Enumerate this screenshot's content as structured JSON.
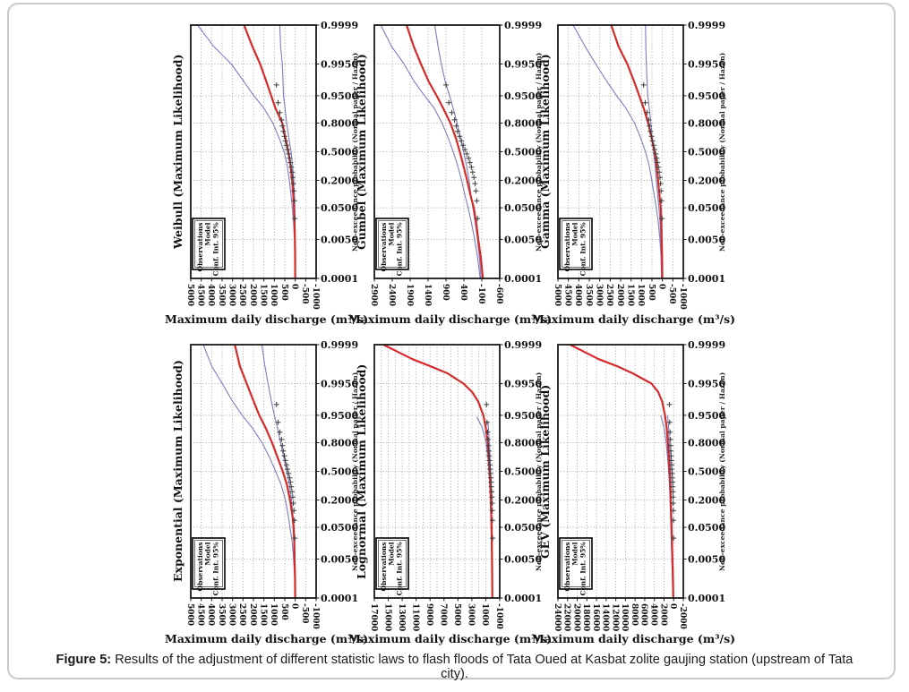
{
  "figure": {
    "caption_label": "Figure 5:",
    "caption_text": " Results of the adjustment of different statistic laws to flash floods of Tata Oued at Kasbat zolite gaujing station (upstream of Tata city)."
  },
  "axes": {
    "x_label": "Maximum daily discharge (m³/s)",
    "y_right_label": "Non-exceedance probability (Normal paper / Hazen)",
    "probability_ticks": [
      "0.9999",
      "0.9950",
      "0.9500",
      "0.8000",
      "0.5000",
      "0.2000",
      "0.0500",
      "0.0050",
      "0.0001"
    ],
    "probability_values": [
      0.9999,
      0.995,
      0.95,
      0.8,
      0.5,
      0.2,
      0.05,
      0.005,
      0.0001
    ]
  },
  "legend": {
    "items": [
      "Observations",
      "Model",
      "Conf. Int. 95%"
    ]
  },
  "colors": {
    "model": "#d42b2b",
    "confidence": "#7d7dc0",
    "observations": "#3c3c3c",
    "grid": "#8f8f8f",
    "frame": "#1a1a1a"
  },
  "observations": {
    "p": [
      0.975,
      0.925,
      0.875,
      0.825,
      0.775,
      0.725,
      0.675,
      0.625,
      0.575,
      0.525,
      0.475,
      0.425,
      0.375,
      0.325,
      0.275,
      0.225,
      0.175,
      0.125,
      0.075,
      0.025
    ],
    "q": [
      900,
      820,
      740,
      660,
      615,
      575,
      520,
      470,
      420,
      370,
      320,
      270,
      230,
      190,
      155,
      120,
      90,
      65,
      40,
      20
    ]
  },
  "chart_data": [
    {
      "type": "line",
      "title": "Weibull (Maximum Likelihood)",
      "x_ticks": [
        5000,
        4500,
        4000,
        3500,
        3000,
        2500,
        2000,
        1500,
        1000,
        500,
        0,
        -500,
        -1000
      ],
      "x_range": [
        5000,
        -1000
      ],
      "grid_step": 500,
      "model": [
        [
          0.9999,
          2450
        ],
        [
          0.999,
          2050
        ],
        [
          0.995,
          1680
        ],
        [
          0.98,
          1380
        ],
        [
          0.95,
          1150
        ],
        [
          0.9,
          950
        ],
        [
          0.8,
          620
        ],
        [
          0.65,
          460
        ],
        [
          0.5,
          330
        ],
        [
          0.35,
          230
        ],
        [
          0.2,
          150
        ],
        [
          0.1,
          95
        ],
        [
          0.05,
          60
        ],
        [
          0.02,
          35
        ],
        [
          0.005,
          15
        ],
        [
          0.001,
          6
        ],
        [
          0.0001,
          2
        ]
      ],
      "conf_upper": [
        [
          0.9999,
          4670
        ],
        [
          0.999,
          3900
        ],
        [
          0.995,
          3060
        ],
        [
          0.98,
          2450
        ],
        [
          0.95,
          1980
        ],
        [
          0.9,
          1500
        ],
        [
          0.8,
          1070
        ],
        [
          0.65,
          760
        ],
        [
          0.5,
          530
        ],
        [
          0.35,
          390
        ],
        [
          0.2,
          283
        ],
        [
          0.1,
          200
        ],
        [
          0.05,
          138
        ],
        [
          0.02,
          85
        ],
        [
          0.005,
          36
        ],
        [
          0.001,
          15
        ],
        [
          0.0001,
          5
        ]
      ],
      "conf_lower": [
        [
          0.9999,
          740
        ],
        [
          0.999,
          700
        ],
        [
          0.995,
          620
        ],
        [
          0.98,
          585
        ],
        [
          0.95,
          560
        ],
        [
          0.9,
          490
        ],
        [
          0.8,
          410
        ],
        [
          0.65,
          300
        ],
        [
          0.5,
          200
        ],
        [
          0.35,
          130
        ],
        [
          0.2,
          77
        ],
        [
          0.1,
          42
        ],
        [
          0.05,
          20
        ],
        [
          0.02,
          10
        ],
        [
          0.005,
          5
        ],
        [
          0.001,
          2
        ],
        [
          0.0001,
          0
        ]
      ]
    },
    {
      "type": "line",
      "title": "Gumbel (Maximum Likelihood)",
      "x_ticks": [
        2900,
        2400,
        1900,
        1400,
        900,
        400,
        -100,
        -600
      ],
      "x_range": [
        2900,
        -600
      ],
      "grid_step": 500,
      "model": [
        [
          0.9999,
          2000
        ],
        [
          0.999,
          1800
        ],
        [
          0.995,
          1600
        ],
        [
          0.98,
          1380
        ],
        [
          0.95,
          1160
        ],
        [
          0.9,
          980
        ],
        [
          0.8,
          775
        ],
        [
          0.65,
          620
        ],
        [
          0.5,
          515
        ],
        [
          0.35,
          420
        ],
        [
          0.2,
          310
        ],
        [
          0.1,
          215
        ],
        [
          0.05,
          125
        ],
        [
          0.02,
          60
        ],
        [
          0.005,
          0
        ],
        [
          0.001,
          -70
        ],
        [
          0.0001,
          -130
        ]
      ],
      "conf_upper": [
        [
          0.9999,
          2720
        ],
        [
          0.999,
          2420
        ],
        [
          0.995,
          2070
        ],
        [
          0.98,
          1780
        ],
        [
          0.95,
          1500
        ],
        [
          0.9,
          1230
        ],
        [
          0.8,
          1010
        ],
        [
          0.65,
          830
        ],
        [
          0.5,
          700
        ],
        [
          0.35,
          580
        ],
        [
          0.2,
          463
        ],
        [
          0.1,
          370
        ],
        [
          0.05,
          280
        ],
        [
          0.02,
          195
        ],
        [
          0.005,
          100
        ],
        [
          0.001,
          20
        ],
        [
          0.0001,
          -55
        ]
      ],
      "conf_lower": [
        [
          0.9999,
          1215
        ],
        [
          0.999,
          1120
        ],
        [
          0.995,
          1030
        ],
        [
          0.98,
          920
        ],
        [
          0.95,
          800
        ],
        [
          0.9,
          700
        ],
        [
          0.8,
          590
        ],
        [
          0.65,
          490
        ],
        [
          0.5,
          410
        ],
        [
          0.35,
          330
        ],
        [
          0.2,
          255
        ],
        [
          0.1,
          200
        ],
        [
          0.05,
          150
        ],
        [
          0.02,
          90
        ],
        [
          0.005,
          20
        ],
        [
          0.001,
          -30
        ],
        [
          0.0001,
          -80
        ]
      ]
    },
    {
      "type": "line",
      "title": "Gamma (Maximum Likelihood)",
      "x_ticks": [
        5000,
        4500,
        4000,
        3500,
        3000,
        2500,
        2000,
        1500,
        1000,
        500,
        0,
        -500,
        -1000
      ],
      "x_range": [
        5000,
        -1000
      ],
      "grid_step": 500,
      "model": [
        [
          0.9999,
          2450
        ],
        [
          0.999,
          2100
        ],
        [
          0.995,
          1680
        ],
        [
          0.98,
          1350
        ],
        [
          0.95,
          1110
        ],
        [
          0.9,
          900
        ],
        [
          0.8,
          680
        ],
        [
          0.65,
          510
        ],
        [
          0.5,
          380
        ],
        [
          0.35,
          285
        ],
        [
          0.2,
          207
        ],
        [
          0.1,
          140
        ],
        [
          0.05,
          80
        ],
        [
          0.02,
          55
        ],
        [
          0.005,
          35
        ],
        [
          0.001,
          15
        ],
        [
          0.0001,
          5
        ]
      ],
      "conf_upper": [
        [
          0.9999,
          4270
        ],
        [
          0.999,
          3700
        ],
        [
          0.995,
          3190
        ],
        [
          0.98,
          2650
        ],
        [
          0.95,
          2190
        ],
        [
          0.9,
          1750
        ],
        [
          0.8,
          1330
        ],
        [
          0.65,
          1030
        ],
        [
          0.5,
          810
        ],
        [
          0.35,
          640
        ],
        [
          0.2,
          510
        ],
        [
          0.1,
          390
        ],
        [
          0.05,
          295
        ],
        [
          0.02,
          200
        ],
        [
          0.005,
          120
        ],
        [
          0.001,
          70
        ],
        [
          0.0001,
          45
        ]
      ],
      "conf_lower": [
        [
          0.9999,
          810
        ],
        [
          0.999,
          795
        ],
        [
          0.995,
          770
        ],
        [
          0.98,
          735
        ],
        [
          0.95,
          700
        ],
        [
          0.9,
          630
        ],
        [
          0.8,
          550
        ],
        [
          0.65,
          480
        ],
        [
          0.5,
          420
        ],
        [
          0.35,
          355
        ],
        [
          0.2,
          295
        ],
        [
          0.1,
          225
        ],
        [
          0.05,
          165
        ],
        [
          0.02,
          115
        ],
        [
          0.005,
          80
        ],
        [
          0.001,
          50
        ],
        [
          0.0001,
          35
        ]
      ]
    },
    {
      "type": "line",
      "title": "Exponential (Maximum Likelihood)",
      "x_ticks": [
        5000,
        4500,
        4000,
        3500,
        3000,
        2500,
        2000,
        1500,
        1000,
        500,
        0,
        -500,
        -1000
      ],
      "x_range": [
        5000,
        -1000
      ],
      "grid_step": 500,
      "model": [
        [
          0.9999,
          2890
        ],
        [
          0.999,
          2650
        ],
        [
          0.995,
          2320
        ],
        [
          0.98,
          1990
        ],
        [
          0.95,
          1720
        ],
        [
          0.9,
          1420
        ],
        [
          0.8,
          1110
        ],
        [
          0.65,
          830
        ],
        [
          0.5,
          600
        ],
        [
          0.35,
          400
        ],
        [
          0.2,
          250
        ],
        [
          0.1,
          140
        ],
        [
          0.05,
          80
        ],
        [
          0.02,
          50
        ],
        [
          0.005,
          35
        ],
        [
          0.001,
          10
        ],
        [
          0.0001,
          3
        ]
      ],
      "conf_upper": [
        [
          0.9999,
          4400
        ],
        [
          0.999,
          4000
        ],
        [
          0.995,
          3490
        ],
        [
          0.98,
          3000
        ],
        [
          0.95,
          2540
        ],
        [
          0.9,
          2060
        ],
        [
          0.8,
          1590
        ],
        [
          0.65,
          1210
        ],
        [
          0.5,
          940
        ],
        [
          0.35,
          680
        ],
        [
          0.2,
          470
        ],
        [
          0.1,
          340
        ],
        [
          0.05,
          250
        ],
        [
          0.02,
          150
        ],
        [
          0.005,
          80
        ],
        [
          0.001,
          30
        ],
        [
          0.0001,
          5
        ]
      ],
      "conf_lower": [
        [
          0.9999,
          1600
        ],
        [
          0.999,
          1450
        ],
        [
          0.995,
          1300
        ],
        [
          0.98,
          1140
        ],
        [
          0.95,
          1000
        ],
        [
          0.9,
          850
        ],
        [
          0.8,
          700
        ],
        [
          0.65,
          540
        ],
        [
          0.5,
          400
        ],
        [
          0.35,
          280
        ],
        [
          0.2,
          180
        ],
        [
          0.1,
          110
        ],
        [
          0.05,
          60
        ],
        [
          0.02,
          30
        ],
        [
          0.005,
          10
        ],
        [
          0.001,
          3
        ],
        [
          0.0001,
          0
        ]
      ]
    },
    {
      "type": "line",
      "title": "Lognormal (Maximum Likelihood)",
      "x_ticks": [
        17000,
        15000,
        13000,
        11000,
        9000,
        7000,
        5000,
        3000,
        1000,
        -1000
      ],
      "x_range": [
        17000,
        -1000
      ],
      "grid_step": 1000,
      "model": [
        [
          0.9999,
          15700
        ],
        [
          0.9995,
          11500
        ],
        [
          0.999,
          9000
        ],
        [
          0.998,
          6500
        ],
        [
          0.995,
          4200
        ],
        [
          0.99,
          2950
        ],
        [
          0.98,
          2100
        ],
        [
          0.95,
          1350
        ],
        [
          0.9,
          1000
        ],
        [
          0.8,
          720
        ],
        [
          0.65,
          560
        ],
        [
          0.5,
          450
        ],
        [
          0.35,
          360
        ],
        [
          0.2,
          280
        ],
        [
          0.1,
          220
        ],
        [
          0.05,
          180
        ],
        [
          0.02,
          140
        ],
        [
          0.005,
          110
        ],
        [
          0.001,
          85
        ],
        [
          0.0001,
          60
        ]
      ],
      "conf_upper": [
        [
          0.945,
          2300
        ],
        [
          0.9,
          1500
        ],
        [
          0.8,
          950
        ],
        [
          0.65,
          700
        ],
        [
          0.5,
          560
        ],
        [
          0.35,
          440
        ],
        [
          0.2,
          340
        ],
        [
          0.1,
          270
        ],
        [
          0.05,
          220
        ],
        [
          0.005,
          130
        ],
        [
          0.0001,
          70
        ]
      ],
      "conf_lower": [
        [
          0.93,
          700
        ],
        [
          0.8,
          480
        ],
        [
          0.65,
          380
        ],
        [
          0.5,
          310
        ],
        [
          0.35,
          250
        ],
        [
          0.2,
          200
        ],
        [
          0.1,
          160
        ],
        [
          0.05,
          130
        ],
        [
          0.005,
          80
        ],
        [
          0.0001,
          40
        ]
      ]
    },
    {
      "type": "line",
      "title": "GEV (Maximum Likelihood)",
      "x_ticks": [
        24000,
        22000,
        20000,
        18000,
        16000,
        14000,
        12000,
        10000,
        8000,
        6000,
        4000,
        2000,
        0,
        -2000
      ],
      "x_range": [
        24000,
        -2000
      ],
      "grid_step": 2000,
      "model": [
        [
          0.9999,
          21500
        ],
        [
          0.9995,
          15500
        ],
        [
          0.999,
          11800
        ],
        [
          0.998,
          8500
        ],
        [
          0.995,
          4600
        ],
        [
          0.99,
          3200
        ],
        [
          0.98,
          2400
        ],
        [
          0.95,
          1800
        ],
        [
          0.9,
          1450
        ],
        [
          0.8,
          1200
        ],
        [
          0.65,
          1000
        ],
        [
          0.5,
          850
        ],
        [
          0.35,
          720
        ],
        [
          0.2,
          620
        ],
        [
          0.1,
          530
        ],
        [
          0.05,
          450
        ],
        [
          0.02,
          360
        ],
        [
          0.005,
          270
        ],
        [
          0.001,
          160
        ],
        [
          0.0001,
          80
        ]
      ],
      "conf_upper": [
        [
          0.95,
          2700
        ],
        [
          0.9,
          2000
        ],
        [
          0.8,
          1550
        ],
        [
          0.65,
          1250
        ],
        [
          0.5,
          1050
        ],
        [
          0.35,
          880
        ],
        [
          0.2,
          760
        ],
        [
          0.1,
          660
        ],
        [
          0.05,
          580
        ],
        [
          0.005,
          380
        ],
        [
          0.0001,
          150
        ]
      ],
      "conf_lower": [
        [
          0.95,
          1250
        ],
        [
          0.9,
          1050
        ],
        [
          0.8,
          900
        ],
        [
          0.65,
          760
        ],
        [
          0.5,
          650
        ],
        [
          0.35,
          560
        ],
        [
          0.2,
          480
        ],
        [
          0.1,
          410
        ],
        [
          0.05,
          350
        ],
        [
          0.005,
          210
        ],
        [
          0.0001,
          60
        ]
      ]
    }
  ]
}
